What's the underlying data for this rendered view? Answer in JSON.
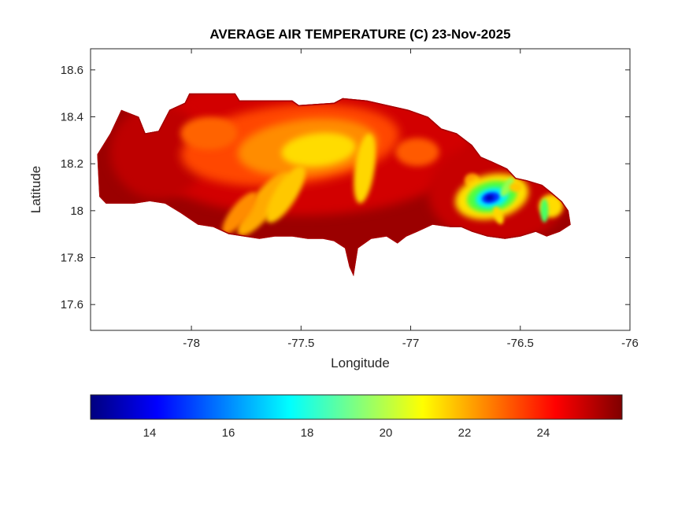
{
  "chart_data": {
    "type": "heatmap",
    "variant": "filled-contour-map",
    "background": "#FFFFFF",
    "title": "AVERAGE AIR TEMPERATURE (C) 23-Nov-2025",
    "xlabel": "Longitude",
    "ylabel": "Latitude",
    "xlim": [
      -78.46,
      -76.0
    ],
    "ylim": [
      17.49,
      18.69
    ],
    "xticks": [
      -78,
      -77.5,
      -77,
      -76.5,
      -76
    ],
    "yticks": [
      17.6,
      17.8,
      18,
      18.2,
      18.4,
      18.6
    ],
    "axis_color": "#262626",
    "title_color": "#000000",
    "colorbar": {
      "orientation": "horizontal",
      "min": 12.5,
      "max": 26,
      "ticks": [
        14,
        16,
        18,
        20,
        22,
        24
      ],
      "colormap": "jet",
      "stops": [
        [
          0,
          "#00007F"
        ],
        [
          0.125,
          "#0000FF"
        ],
        [
          0.375,
          "#00FFFF"
        ],
        [
          0.625,
          "#FFFF00"
        ],
        [
          0.875,
          "#FF0000"
        ],
        [
          1,
          "#7F0000"
        ]
      ]
    },
    "region": {
      "name": "jamaica-landmass",
      "base_temp_c": 25,
      "base_color": "#9B0000",
      "coast_color": "#A50000",
      "outline": [
        [
          -78.42,
          18.06
        ],
        [
          -78.43,
          18.24
        ],
        [
          -78.37,
          18.33
        ],
        [
          -78.32,
          18.43
        ],
        [
          -78.24,
          18.4
        ],
        [
          -78.21,
          18.33
        ],
        [
          -78.15,
          18.34
        ],
        [
          -78.1,
          18.43
        ],
        [
          -78.03,
          18.46
        ],
        [
          -78.01,
          18.5
        ],
        [
          -77.8,
          18.5
        ],
        [
          -77.78,
          18.47
        ],
        [
          -77.54,
          18.47
        ],
        [
          -77.51,
          18.45
        ],
        [
          -77.35,
          18.46
        ],
        [
          -77.31,
          18.48
        ],
        [
          -77.2,
          18.47
        ],
        [
          -77.01,
          18.43
        ],
        [
          -76.92,
          18.4
        ],
        [
          -76.86,
          18.35
        ],
        [
          -76.79,
          18.33
        ],
        [
          -76.72,
          18.28
        ],
        [
          -76.68,
          18.23
        ],
        [
          -76.63,
          18.21
        ],
        [
          -76.56,
          18.18
        ],
        [
          -76.52,
          18.14
        ],
        [
          -76.47,
          18.13
        ],
        [
          -76.4,
          18.11
        ],
        [
          -76.36,
          18.08
        ],
        [
          -76.31,
          18.04
        ],
        [
          -76.28,
          18.0
        ],
        [
          -76.27,
          17.94
        ],
        [
          -76.32,
          17.91
        ],
        [
          -76.38,
          17.89
        ],
        [
          -76.43,
          17.91
        ],
        [
          -76.5,
          17.89
        ],
        [
          -76.57,
          17.88
        ],
        [
          -76.65,
          17.89
        ],
        [
          -76.72,
          17.91
        ],
        [
          -76.77,
          17.93
        ],
        [
          -76.82,
          17.93
        ],
        [
          -76.9,
          17.94
        ],
        [
          -76.97,
          17.91
        ],
        [
          -77.02,
          17.89
        ],
        [
          -77.06,
          17.86
        ],
        [
          -77.11,
          17.89
        ],
        [
          -77.18,
          17.88
        ],
        [
          -77.24,
          17.84
        ],
        [
          -77.25,
          17.78
        ],
        [
          -77.26,
          17.72
        ],
        [
          -77.28,
          17.76
        ],
        [
          -77.3,
          17.84
        ],
        [
          -77.35,
          17.87
        ],
        [
          -77.4,
          17.88
        ],
        [
          -77.47,
          17.88
        ],
        [
          -77.54,
          17.89
        ],
        [
          -77.62,
          17.89
        ],
        [
          -77.69,
          17.88
        ],
        [
          -77.76,
          17.89
        ],
        [
          -77.83,
          17.9
        ],
        [
          -77.9,
          17.93
        ],
        [
          -77.97,
          17.94
        ],
        [
          -78.05,
          17.99
        ],
        [
          -78.12,
          18.03
        ],
        [
          -78.19,
          18.04
        ],
        [
          -78.26,
          18.03
        ],
        [
          -78.33,
          18.03
        ],
        [
          -78.39,
          18.03
        ]
      ]
    },
    "features": [
      {
        "name": "red-zone-central",
        "lon": -77.5,
        "lat": 18.28,
        "rx": 0.78,
        "ry": 0.3,
        "rot": 0,
        "color": "#D20000",
        "temp_c": 24,
        "blur": 6
      },
      {
        "name": "red-zone-east",
        "lon": -76.6,
        "lat": 18.08,
        "rx": 0.32,
        "ry": 0.22,
        "rot": 0,
        "color": "#C60000",
        "temp_c": 24,
        "blur": 6
      },
      {
        "name": "red-zone-west",
        "lon": -78.15,
        "lat": 18.25,
        "rx": 0.22,
        "ry": 0.2,
        "rot": 0,
        "color": "#BE0000",
        "temp_c": 24.5,
        "blur": 6
      },
      {
        "name": "orange-zone",
        "lon": -77.55,
        "lat": 18.28,
        "rx": 0.5,
        "ry": 0.17,
        "rot": -6,
        "color": "#FF4600",
        "temp_c": 23,
        "blur": 6
      },
      {
        "name": "orange-core",
        "lon": -77.47,
        "lat": 18.27,
        "rx": 0.32,
        "ry": 0.12,
        "rot": -6,
        "color": "#FF8C00",
        "temp_c": 22,
        "blur": 5
      },
      {
        "name": "yellow-core",
        "lon": -77.42,
        "lat": 18.26,
        "rx": 0.17,
        "ry": 0.07,
        "rot": -6,
        "color": "#FFDC00",
        "temp_c": 20.5,
        "blur": 4
      },
      {
        "name": "orange-patch-nw",
        "lon": -77.92,
        "lat": 18.33,
        "rx": 0.13,
        "ry": 0.07,
        "rot": 0,
        "color": "#FF6400",
        "temp_c": 22.5,
        "blur": 4
      },
      {
        "name": "yellow-streak-central",
        "lon": -77.21,
        "lat": 18.18,
        "rx": 0.045,
        "ry": 0.15,
        "rot": 8,
        "color": "#FFD700",
        "temp_c": 20.5,
        "blur": 3
      },
      {
        "name": "orange-streak-sw-1",
        "lon": -77.67,
        "lat": 18.03,
        "rx": 0.055,
        "ry": 0.17,
        "rot": 38,
        "color": "#FFAA00",
        "temp_c": 21.5,
        "blur": 3
      },
      {
        "name": "orange-streak-sw-2",
        "lon": -77.78,
        "lat": 17.99,
        "rx": 0.04,
        "ry": 0.11,
        "rot": 38,
        "color": "#FF8C00",
        "temp_c": 22,
        "blur": 3
      },
      {
        "name": "yellow-streak-sw",
        "lon": -77.57,
        "lat": 18.07,
        "rx": 0.05,
        "ry": 0.14,
        "rot": 32,
        "color": "#FFC800",
        "temp_c": 21,
        "blur": 3
      },
      {
        "name": "orange-patch-mideast",
        "lon": -76.97,
        "lat": 18.25,
        "rx": 0.1,
        "ry": 0.06,
        "rot": 0,
        "color": "#FF5A00",
        "temp_c": 23,
        "blur": 4
      },
      {
        "name": "orange-speckle-east",
        "lon": -76.72,
        "lat": 18.13,
        "rx": 0.035,
        "ry": 0.03,
        "rot": 0,
        "color": "#FF9600",
        "temp_c": 21.5,
        "blur": 2
      },
      {
        "name": "bluemtn-ring-yellow",
        "lon": -76.63,
        "lat": 18.06,
        "rx": 0.17,
        "ry": 0.095,
        "rot": -12,
        "color": "#FFE100",
        "temp_c": 20,
        "blur": 4
      },
      {
        "name": "bluemtn-ring-green",
        "lon": -76.63,
        "lat": 18.06,
        "rx": 0.115,
        "ry": 0.065,
        "rot": -12,
        "color": "#50FF3C",
        "temp_c": 18.5,
        "blur": 3
      },
      {
        "name": "bluemtn-ring-cyan",
        "lon": -76.63,
        "lat": 18.055,
        "rx": 0.075,
        "ry": 0.042,
        "rot": -12,
        "color": "#00F0FF",
        "temp_c": 16.5,
        "blur": 3
      },
      {
        "name": "bluemtn-core-blue",
        "lon": -76.635,
        "lat": 18.055,
        "rx": 0.042,
        "ry": 0.023,
        "rot": -12,
        "color": "#0032FF",
        "temp_c": 14,
        "blur": 2
      },
      {
        "name": "bluemtn-core-dark",
        "lon": -76.64,
        "lat": 18.055,
        "rx": 0.02,
        "ry": 0.012,
        "rot": -12,
        "color": "#0000B4",
        "temp_c": 13,
        "blur": 2
      },
      {
        "name": "bluemtn-streak-ne",
        "lon": -76.56,
        "lat": 18.1,
        "rx": 0.02,
        "ry": 0.045,
        "rot": 30,
        "color": "#96FF50",
        "temp_c": 19,
        "blur": 2
      },
      {
        "name": "bluemtn-streak-se",
        "lon": -76.6,
        "lat": 17.98,
        "rx": 0.02,
        "ry": 0.04,
        "rot": -20,
        "color": "#FFD700",
        "temp_c": 20,
        "blur": 2
      },
      {
        "name": "yellow-dot-east",
        "lon": -76.52,
        "lat": 18.1,
        "rx": 0.03,
        "ry": 0.02,
        "rot": 0,
        "color": "#FFC800",
        "temp_c": 20.5,
        "blur": 2
      },
      {
        "name": "easttip-yellow",
        "lon": -76.36,
        "lat": 18.02,
        "rx": 0.055,
        "ry": 0.05,
        "rot": 0,
        "color": "#FFDC00",
        "temp_c": 20.5,
        "blur": 3
      },
      {
        "name": "easttip-green-dash",
        "lon": -76.39,
        "lat": 18.0,
        "rx": 0.018,
        "ry": 0.05,
        "rot": 0,
        "color": "#46FF64",
        "temp_c": 18.5,
        "blur": 2
      }
    ]
  }
}
